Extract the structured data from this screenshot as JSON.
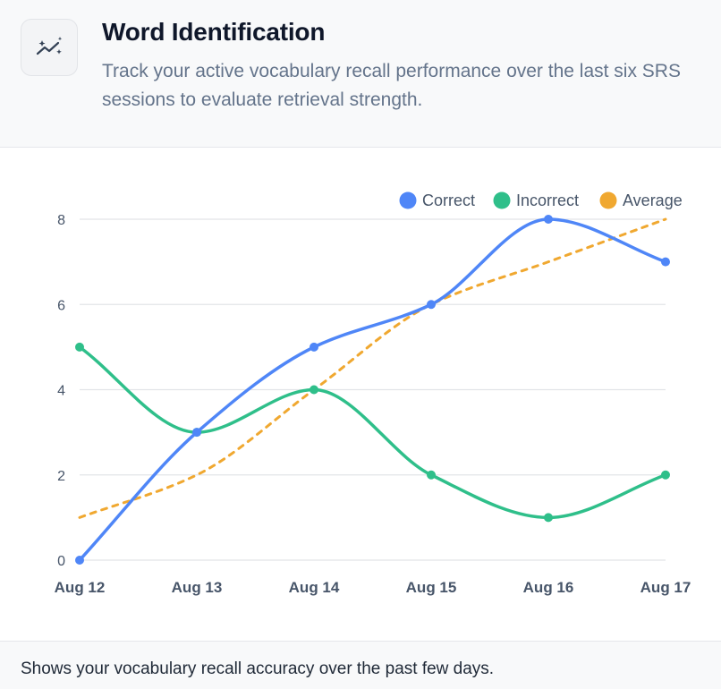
{
  "header": {
    "title": "Word Identification",
    "subtitle": "Track your active vocabulary recall performance over the last six SRS sessions to evaluate retrieval strength.",
    "icon": "sparkle-trend-icon"
  },
  "footer": {
    "text": "Shows your vocabulary recall accuracy over the past few days."
  },
  "chart_data": {
    "type": "line",
    "categories": [
      "Aug 12",
      "Aug 13",
      "Aug 14",
      "Aug 15",
      "Aug 16",
      "Aug 17"
    ],
    "series": [
      {
        "name": "Correct",
        "values": [
          0,
          3,
          5,
          6,
          8,
          7
        ],
        "color": "#4f86f7",
        "style": "solid"
      },
      {
        "name": "Incorrect",
        "values": [
          5,
          3,
          4,
          2,
          1,
          2
        ],
        "color": "#2fbf8a",
        "style": "solid"
      },
      {
        "name": "Average",
        "values": [
          1,
          2,
          4,
          6,
          7,
          8
        ],
        "color": "#f0a830",
        "style": "dashed"
      }
    ],
    "yticks": [
      0,
      2,
      4,
      6,
      8
    ],
    "ylim": [
      0,
      8
    ],
    "grid": true,
    "legend": "top-right",
    "title": "",
    "xlabel": "",
    "ylabel": ""
  }
}
